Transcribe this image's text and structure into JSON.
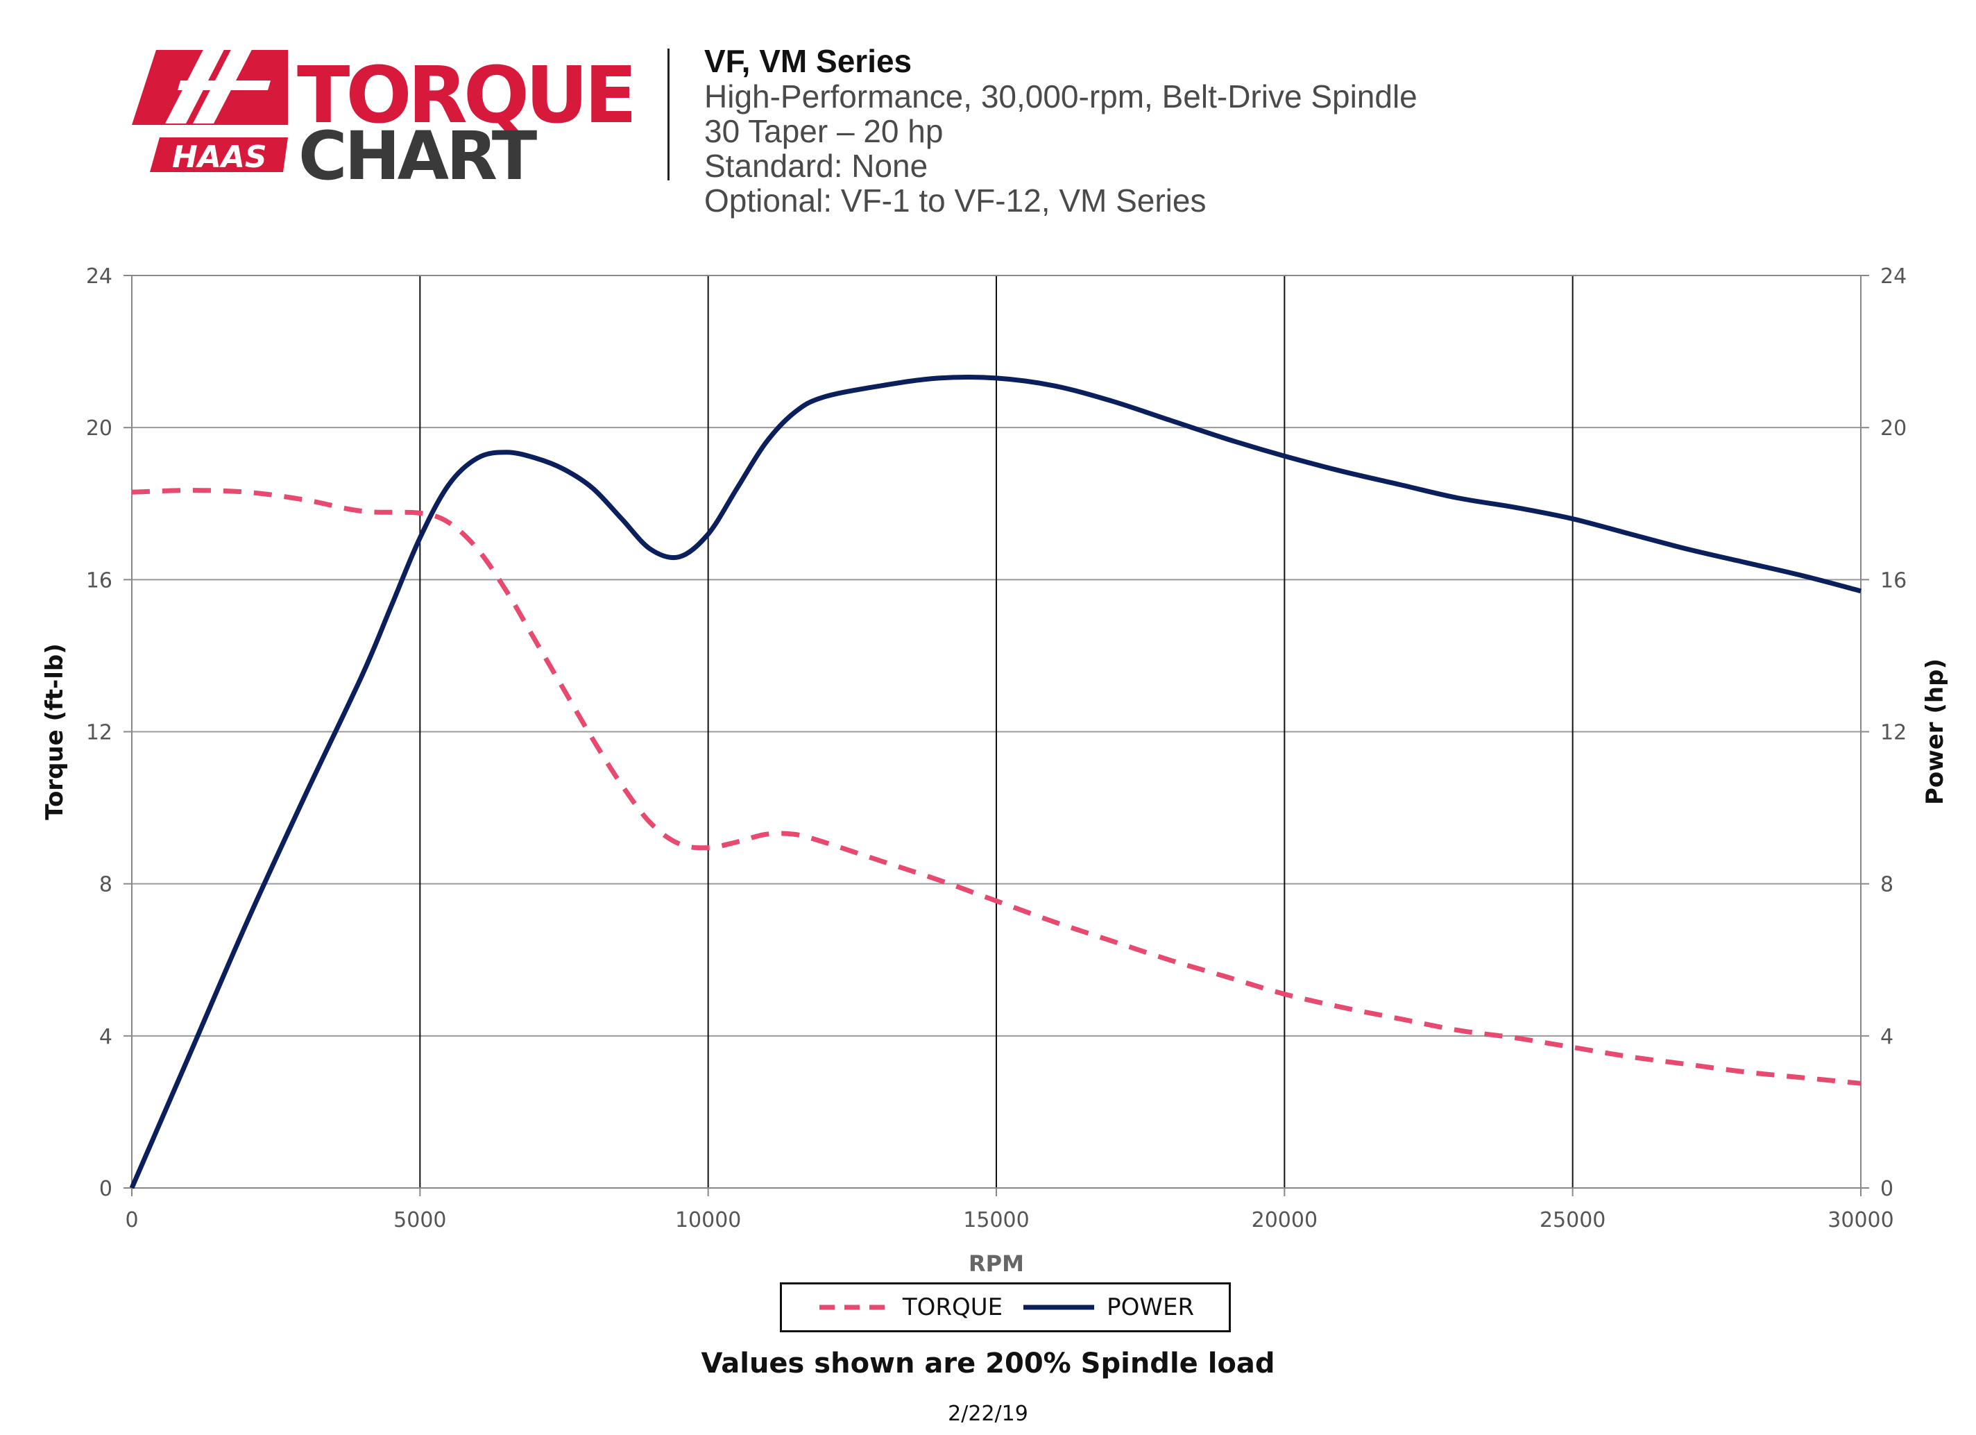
{
  "logo": {
    "brand": "HAAS",
    "word_top": "TORQUE",
    "word_bottom": "CHART",
    "brand_color": "#d71a3c",
    "dark_color": "#3a3a3a"
  },
  "header": {
    "title": "VF, VM Series",
    "lines": [
      "High-Performance, 30,000-rpm, Belt-Drive Spindle",
      "30 Taper – 20 hp",
      "Standard: None",
      "Optional: VF-1 to VF-12, VM Series"
    ]
  },
  "chart_data": {
    "type": "line",
    "xlabel": "RPM",
    "ylabel_left": "Torque (ft-lb)",
    "ylabel_right": "Power (hp)",
    "xlim": [
      0,
      30000
    ],
    "ylim": [
      0,
      24
    ],
    "x_ticks": [
      0,
      5000,
      10000,
      15000,
      20000,
      25000,
      30000
    ],
    "y_ticks": [
      0,
      4,
      8,
      12,
      16,
      20,
      24
    ],
    "grid": true,
    "legend_position": "bottom",
    "series": [
      {
        "name": "TORQUE",
        "color": "#e8496e",
        "style": "dashed",
        "points": [
          [
            0,
            18.3
          ],
          [
            1000,
            18.35
          ],
          [
            2000,
            18.3
          ],
          [
            3000,
            18.1
          ],
          [
            4000,
            17.8
          ],
          [
            5000,
            17.75
          ],
          [
            5500,
            17.5
          ],
          [
            6000,
            16.8
          ],
          [
            6500,
            15.7
          ],
          [
            7000,
            14.4
          ],
          [
            7500,
            13.1
          ],
          [
            8000,
            11.8
          ],
          [
            8500,
            10.6
          ],
          [
            9000,
            9.6
          ],
          [
            9500,
            9.05
          ],
          [
            10000,
            8.95
          ],
          [
            10500,
            9.1
          ],
          [
            11000,
            9.3
          ],
          [
            11500,
            9.3
          ],
          [
            12000,
            9.1
          ],
          [
            13000,
            8.6
          ],
          [
            14000,
            8.1
          ],
          [
            15000,
            7.55
          ],
          [
            16000,
            7.0
          ],
          [
            17000,
            6.5
          ],
          [
            18000,
            6.0
          ],
          [
            19000,
            5.55
          ],
          [
            20000,
            5.1
          ],
          [
            21000,
            4.75
          ],
          [
            22000,
            4.45
          ],
          [
            23000,
            4.15
          ],
          [
            24000,
            3.95
          ],
          [
            25000,
            3.7
          ],
          [
            26000,
            3.45
          ],
          [
            27000,
            3.25
          ],
          [
            28000,
            3.05
          ],
          [
            29000,
            2.9
          ],
          [
            30000,
            2.75
          ]
        ]
      },
      {
        "name": "POWER",
        "color": "#0b1f5c",
        "style": "solid",
        "points": [
          [
            0,
            0
          ],
          [
            1000,
            3.5
          ],
          [
            2000,
            7.0
          ],
          [
            3000,
            10.3
          ],
          [
            4000,
            13.5
          ],
          [
            4500,
            15.3
          ],
          [
            5000,
            17.1
          ],
          [
            5500,
            18.5
          ],
          [
            6000,
            19.2
          ],
          [
            6500,
            19.35
          ],
          [
            7000,
            19.2
          ],
          [
            7500,
            18.9
          ],
          [
            8000,
            18.4
          ],
          [
            8500,
            17.6
          ],
          [
            9000,
            16.8
          ],
          [
            9500,
            16.6
          ],
          [
            10000,
            17.2
          ],
          [
            10500,
            18.4
          ],
          [
            11000,
            19.6
          ],
          [
            11500,
            20.4
          ],
          [
            12000,
            20.8
          ],
          [
            13000,
            21.1
          ],
          [
            14000,
            21.3
          ],
          [
            15000,
            21.3
          ],
          [
            16000,
            21.1
          ],
          [
            17000,
            20.7
          ],
          [
            18000,
            20.2
          ],
          [
            19000,
            19.7
          ],
          [
            20000,
            19.25
          ],
          [
            21000,
            18.85
          ],
          [
            22000,
            18.5
          ],
          [
            23000,
            18.15
          ],
          [
            24000,
            17.9
          ],
          [
            25000,
            17.6
          ],
          [
            26000,
            17.2
          ],
          [
            27000,
            16.8
          ],
          [
            28000,
            16.45
          ],
          [
            29000,
            16.1
          ],
          [
            30000,
            15.7
          ]
        ]
      }
    ],
    "footnote": "Values shown are 200% Spindle load",
    "date": "2/22/19"
  },
  "colors": {
    "axis": "#888888",
    "grid": "#9a9a9a",
    "major_vertical": "#111111",
    "tick_text": "#555555"
  }
}
